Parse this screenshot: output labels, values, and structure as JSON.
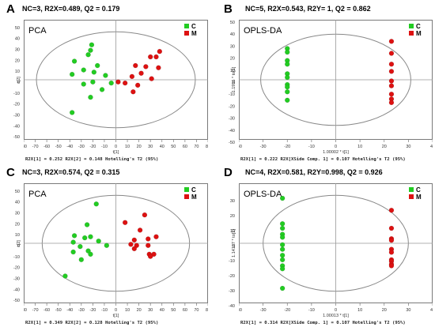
{
  "colors": {
    "C": "#22cc22",
    "M": "#dd1111"
  },
  "chart_data": [
    {
      "type": "scatter",
      "letter": "A",
      "method": "PCA",
      "stats": "NC=3,  R2X=0.489, Q2 = 0.179",
      "xlabel": "t[1]",
      "ylabel": "t[2]",
      "footer": "R2X[1] = 0.252   R2X[2] = 0.148        Hotelling's T2 (95%)",
      "xlim": [
        -80,
        80
      ],
      "ylim": [
        -55,
        55
      ],
      "xticks": [
        -80,
        -70,
        -60,
        -50,
        -40,
        -30,
        -20,
        -10,
        0,
        10,
        20,
        30,
        40,
        50,
        60,
        70,
        80
      ],
      "yticks": [
        -50,
        -40,
        -30,
        -20,
        -10,
        0,
        10,
        20,
        30,
        40,
        50
      ],
      "ellipse": {
        "rx": 69,
        "ry": 44
      },
      "legend": [
        "C",
        "M"
      ],
      "series": [
        {
          "name": "C",
          "points": [
            [
              -21,
              32
            ],
            [
              -22,
              27
            ],
            [
              -24,
              23
            ],
            [
              -36,
              17
            ],
            [
              -16,
              13
            ],
            [
              -28,
              9
            ],
            [
              -19,
              7
            ],
            [
              -38,
              5
            ],
            [
              -9,
              4
            ],
            [
              -20,
              -2
            ],
            [
              -4,
              -3
            ],
            [
              -28,
              -4
            ],
            [
              -12,
              -9
            ],
            [
              -22,
              -16
            ],
            [
              -38,
              -30
            ]
          ]
        },
        {
          "name": "M",
          "points": [
            [
              38,
              26
            ],
            [
              30,
              21
            ],
            [
              35,
              21
            ],
            [
              17,
              13
            ],
            [
              26,
              12
            ],
            [
              37,
              11
            ],
            [
              22,
              6
            ],
            [
              14,
              3
            ],
            [
              31,
              1
            ],
            [
              2,
              -2
            ],
            [
              8,
              -3
            ],
            [
              19,
              -5
            ],
            [
              15,
              -11
            ]
          ]
        }
      ]
    },
    {
      "type": "scatter",
      "letter": "B",
      "method": "OPLS-DA",
      "stats": "NC=5,  R2X=0.543,  R2Y= 1,   Q2 = 0.862",
      "xlabel": "1.00002 * t[1]",
      "ylabel": "1.1955 * to[1]",
      "footer": "R2X[1] = 0.222   R2X[XSide Comp. 1] = 0.107  Hotelling's T2 (95%)",
      "xlim": [
        -40,
        40
      ],
      "ylim": [
        -50,
        50
      ],
      "xticks": [
        -40,
        -30,
        -20,
        -10,
        0,
        10,
        20,
        30,
        40
      ],
      "yticks": [
        -50,
        -40,
        -30,
        -20,
        -10,
        0,
        10,
        20,
        30,
        40,
        50
      ],
      "ellipse": {
        "rx": 31,
        "ry": 38
      },
      "legend": [
        "C",
        "M"
      ],
      "series": [
        {
          "name": "C",
          "points": [
            [
              -20,
              26
            ],
            [
              -20,
              23
            ],
            [
              -20,
              16
            ],
            [
              -20,
              13
            ],
            [
              -20,
              5
            ],
            [
              -20,
              2
            ],
            [
              -20,
              -4
            ],
            [
              -20,
              -6
            ],
            [
              -20,
              -10
            ],
            [
              -20,
              -17
            ]
          ]
        },
        {
          "name": "M",
          "points": [
            [
              23,
              32
            ],
            [
              23,
              22
            ],
            [
              23,
              13
            ],
            [
              23,
              7
            ],
            [
              23,
              -1
            ],
            [
              23,
              -5
            ],
            [
              23,
              -12
            ],
            [
              23,
              -16
            ],
            [
              23,
              -19
            ]
          ]
        }
      ]
    },
    {
      "type": "scatter",
      "letter": "C",
      "method": "PCA",
      "stats": "NC=3,  R2X=0.574, Q2 = 0.315",
      "xlabel": "t[1]",
      "ylabel": "t[2]",
      "footer": "R2X[1] = 0.349   R2X[2] = 0.128    Hotelling's T2 (95%)",
      "xlim": [
        -80,
        80
      ],
      "ylim": [
        -55,
        55
      ],
      "xticks": [
        -80,
        -70,
        -60,
        -50,
        -40,
        -30,
        -20,
        -10,
        0,
        10,
        20,
        30,
        40,
        50,
        60,
        70,
        80
      ],
      "yticks": [
        -50,
        -40,
        -30,
        -20,
        -10,
        0,
        10,
        20,
        30,
        40,
        50
      ],
      "ellipse": {
        "rx": 64,
        "ry": 44
      },
      "legend": [
        "C",
        "M"
      ],
      "series": [
        {
          "name": "C",
          "points": [
            [
              -17,
              36
            ],
            [
              -25,
              17
            ],
            [
              -36,
              7
            ],
            [
              -27,
              5
            ],
            [
              -22,
              6
            ],
            [
              -15,
              2
            ],
            [
              -37,
              1
            ],
            [
              -8,
              -2
            ],
            [
              -31,
              -3
            ],
            [
              -24,
              -7
            ],
            [
              -37,
              -8
            ],
            [
              -22,
              -10
            ],
            [
              -30,
              -15
            ],
            [
              -44,
              -30
            ]
          ]
        },
        {
          "name": "M",
          "points": [
            [
              25,
              26
            ],
            [
              8,
              19
            ],
            [
              21,
              12
            ],
            [
              35,
              6
            ],
            [
              28,
              4
            ],
            [
              16,
              3
            ],
            [
              13,
              -1
            ],
            [
              18,
              -2
            ],
            [
              28,
              -2
            ],
            [
              16,
              -5
            ],
            [
              29,
              -10
            ],
            [
              33,
              -10
            ],
            [
              30,
              -12
            ]
          ]
        }
      ]
    },
    {
      "type": "scatter",
      "letter": "D",
      "method": "OPLS-DA",
      "stats": "NC=4,  R2X=0.581,  R2Y=0.998,   Q2 = 0.926",
      "xlabel": "1.00013 * t[1]",
      "ylabel": "1.14127 * to[1]",
      "footer": "R2X[1] = 0.314   R2X[XSide Comp. 1] = 0.107   Hotelling's T2 (95%)",
      "xlim": [
        -40,
        40
      ],
      "ylim": [
        -40,
        40
      ],
      "xticks": [
        -40,
        -30,
        -20,
        -10,
        0,
        10,
        20,
        30,
        40
      ],
      "yticks": [
        -40,
        -30,
        -20,
        -10,
        0,
        10,
        20,
        30
      ],
      "ellipse": {
        "rx": 30,
        "ry": 32
      },
      "legend": [
        "C",
        "M"
      ],
      "series": [
        {
          "name": "C",
          "points": [
            [
              -22,
              30
            ],
            [
              -22,
              13
            ],
            [
              -22,
              10
            ],
            [
              -22,
              6
            ],
            [
              -22,
              4
            ],
            [
              -22,
              -1
            ],
            [
              -22,
              -4
            ],
            [
              -22,
              -8
            ],
            [
              -22,
              -11
            ],
            [
              -22,
              -15
            ],
            [
              -22,
              -17
            ],
            [
              -22,
              -30
            ]
          ]
        },
        {
          "name": "M",
          "points": [
            [
              23,
              22
            ],
            [
              23,
              10
            ],
            [
              23,
              3
            ],
            [
              23,
              2
            ],
            [
              23,
              -4
            ],
            [
              23,
              -6
            ],
            [
              23,
              -11
            ],
            [
              23,
              -12
            ],
            [
              23,
              -14
            ],
            [
              23,
              -15
            ]
          ]
        }
      ]
    }
  ]
}
